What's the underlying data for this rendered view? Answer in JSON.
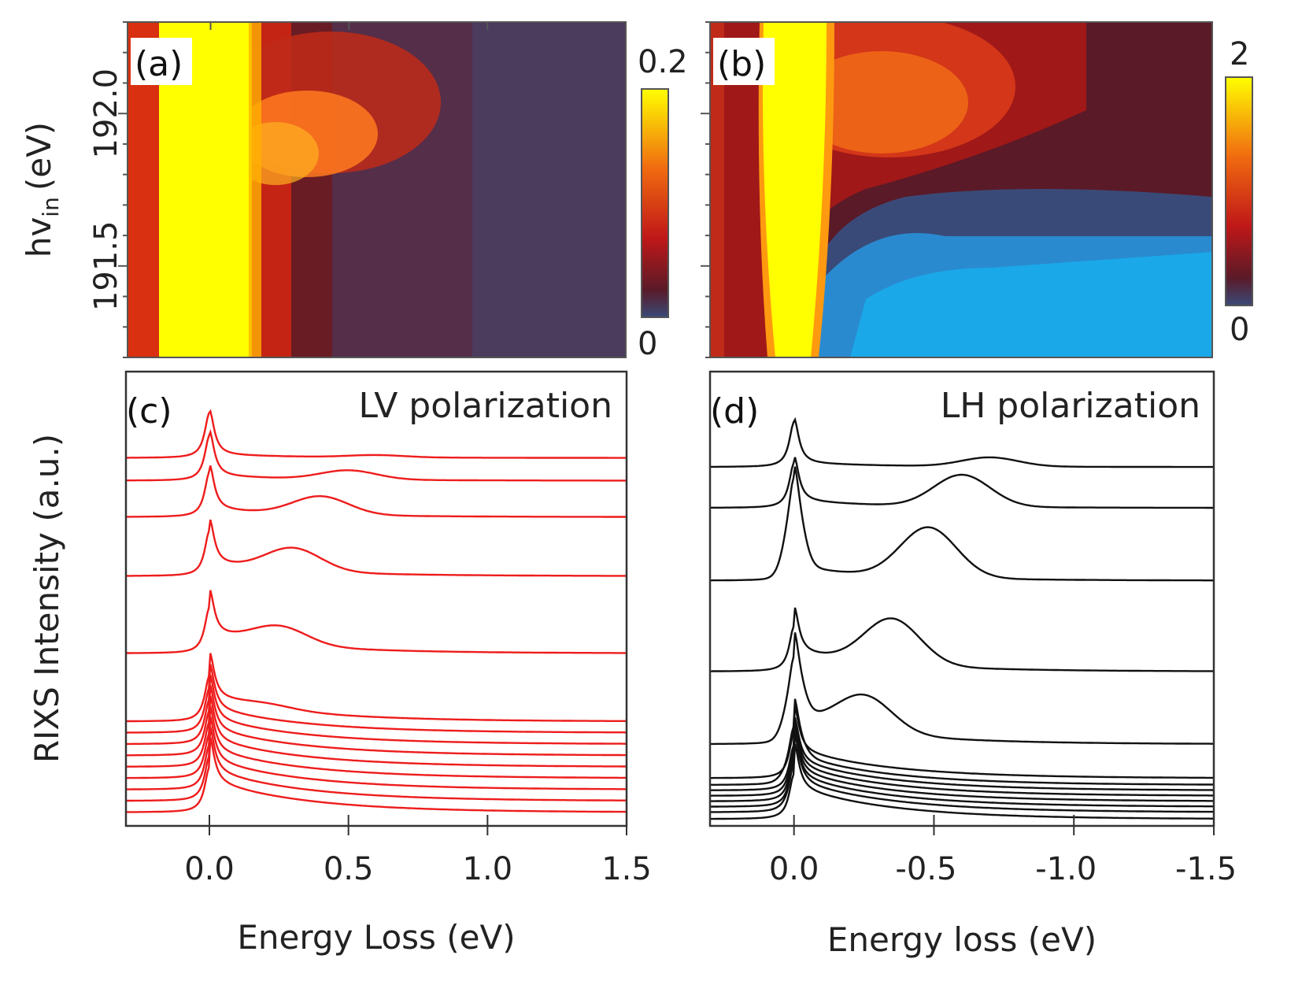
{
  "chart_data": [
    {
      "type": "heatmap",
      "panel_label": "(a)",
      "xlim": [
        -0.3,
        1.5
      ],
      "ylim": [
        191.2,
        192.3
      ],
      "ylabel_main": "hv",
      "ylabel_sub": "in",
      "ylabel_unit": "(eV)",
      "yticks": [
        191.5,
        192.0
      ],
      "ytick_labels": [
        "191.5",
        "192.0"
      ],
      "colorbar_range": [
        0,
        0.2
      ],
      "colorbar_labels": [
        "0.2",
        "0"
      ],
      "colors": [
        "#3a4a78",
        "#5a1a28",
        "#c01818",
        "#f06a10",
        "#ffff00"
      ]
    },
    {
      "type": "heatmap",
      "panel_label": "(b)",
      "xlim": [
        0.3,
        -1.5
      ],
      "ylim": [
        191.2,
        192.3
      ],
      "yticks": [
        191.5,
        192.0
      ],
      "colorbar_range": [
        0,
        2
      ],
      "colorbar_labels": [
        "2",
        "0"
      ],
      "colors": [
        "#1aa0e0",
        "#3a4a78",
        "#5a1a28",
        "#c01818",
        "#f06a10",
        "#ffff00"
      ]
    },
    {
      "type": "line",
      "panel_label": "(c)",
      "annotation": "LV polarization",
      "xlabel": "Energy Loss (eV)",
      "ylabel": "RIXS Intensity (a.u.)",
      "xlim": [
        -0.3,
        1.5
      ],
      "xticks": [
        0.0,
        0.5,
        1.0,
        1.5
      ],
      "xtick_labels": [
        "0.0",
        "0.5",
        "1.0",
        "1.5"
      ],
      "line_color": "#ee1c1c",
      "series": [
        {
          "offset": 0.81,
          "feature_pos": 0.6,
          "feature_amp": 0.005
        },
        {
          "offset": 0.76,
          "feature_pos": 0.5,
          "feature_amp": 0.02
        },
        {
          "offset": 0.68,
          "feature_pos": 0.4,
          "feature_amp": 0.04
        },
        {
          "offset": 0.55,
          "feature_pos": 0.3,
          "feature_amp": 0.05
        },
        {
          "offset": 0.38,
          "feature_pos": 0.25,
          "feature_amp": 0.04
        },
        {
          "offset": 0.23,
          "feature_pos": 0.2,
          "feature_amp": 0.01
        },
        {
          "offset": 0.205,
          "feature_pos": 0.2,
          "feature_amp": 0.0
        },
        {
          "offset": 0.18,
          "feature_pos": 0.2,
          "feature_amp": 0.0
        },
        {
          "offset": 0.155,
          "feature_pos": 0.2,
          "feature_amp": 0.0
        },
        {
          "offset": 0.13,
          "feature_pos": 0.2,
          "feature_amp": 0.0
        },
        {
          "offset": 0.105,
          "feature_pos": 0.2,
          "feature_amp": 0.0
        },
        {
          "offset": 0.08,
          "feature_pos": 0.2,
          "feature_amp": 0.0
        },
        {
          "offset": 0.055,
          "feature_pos": 0.2,
          "feature_amp": 0.0
        },
        {
          "offset": 0.03,
          "feature_pos": 0.2,
          "feature_amp": 0.0
        }
      ]
    },
    {
      "type": "line",
      "panel_label": "(d)",
      "annotation": "LH polarization",
      "xlabel": "Energy loss (eV)",
      "xlim": [
        0.3,
        -1.5
      ],
      "xticks": [
        0.0,
        -0.5,
        -1.0,
        -1.5
      ],
      "xtick_labels": [
        "0.0",
        "-0.5",
        "-1.0",
        "-1.5"
      ],
      "line_color": "#111111",
      "series": [
        {
          "offset": 0.79,
          "feature_pos": -0.7,
          "feature_amp": 0.02,
          "elastic_amp": 0.0
        },
        {
          "offset": 0.7,
          "feature_pos": -0.6,
          "feature_amp": 0.07,
          "elastic_amp": 0.0
        },
        {
          "offset": 0.54,
          "feature_pos": -0.48,
          "feature_amp": 0.11,
          "elastic_amp": 0.85
        },
        {
          "offset": 0.34,
          "feature_pos": -0.35,
          "feature_amp": 0.1,
          "elastic_amp": 0.0
        },
        {
          "offset": 0.18,
          "feature_pos": -0.25,
          "feature_amp": 0.08,
          "elastic_amp": 0.6
        },
        {
          "offset": 0.105,
          "feature_pos": -0.2,
          "feature_amp": 0.0,
          "elastic_amp": 0.0
        },
        {
          "offset": 0.09,
          "feature_pos": -0.2,
          "feature_amp": 0.0,
          "elastic_amp": 0.2
        },
        {
          "offset": 0.078,
          "feature_pos": -0.2,
          "feature_amp": 0.0,
          "elastic_amp": 0.0
        },
        {
          "offset": 0.066,
          "feature_pos": -0.2,
          "feature_amp": 0.0,
          "elastic_amp": 0.0
        },
        {
          "offset": 0.054,
          "feature_pos": -0.2,
          "feature_amp": 0.0,
          "elastic_amp": 0.0
        },
        {
          "offset": 0.042,
          "feature_pos": -0.2,
          "feature_amp": 0.0,
          "elastic_amp": 0.0
        },
        {
          "offset": 0.03,
          "feature_pos": -0.2,
          "feature_amp": 0.0,
          "elastic_amp": 0.05
        },
        {
          "offset": 0.015,
          "feature_pos": -0.2,
          "feature_amp": 0.0,
          "elastic_amp": 0.0
        }
      ]
    }
  ]
}
